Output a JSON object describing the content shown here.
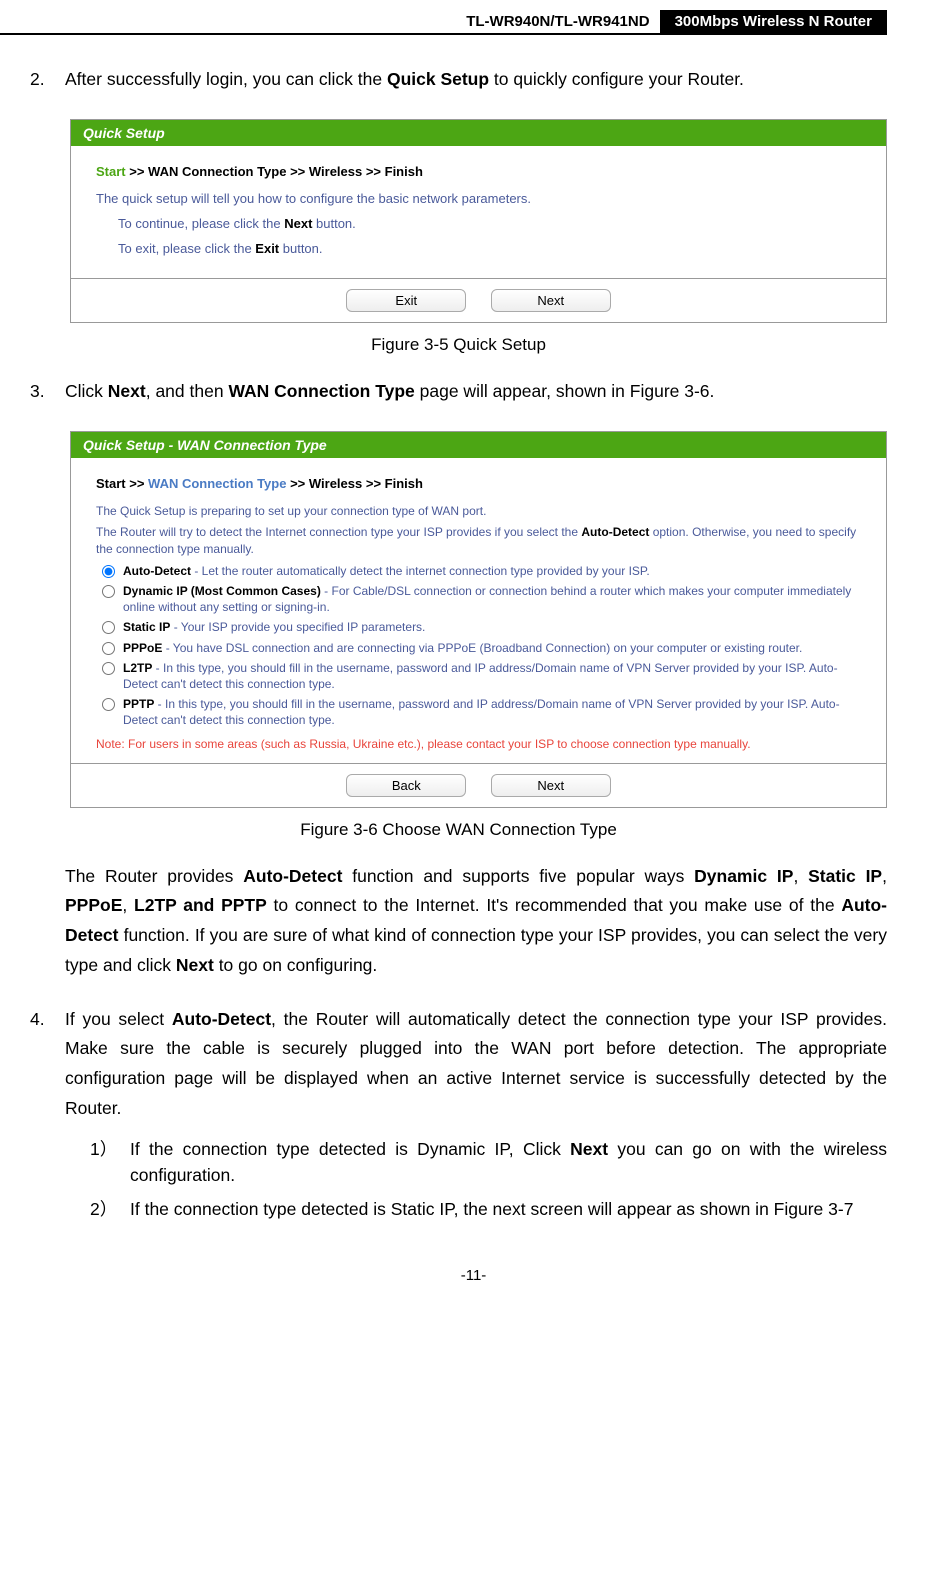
{
  "header": {
    "left": "TL-WR940N/TL-WR941ND",
    "right": "300Mbps Wireless N Router"
  },
  "step2": {
    "num": "2.",
    "text_before": "After successfully login, you can click the ",
    "bold": "Quick Setup",
    "text_after": " to quickly configure your Router."
  },
  "fig35": {
    "title": "Quick Setup",
    "bc_start": "Start",
    "bc_rest": " >> WAN Connection Type >> Wireless >> Finish",
    "line1": "The quick setup will tell you how to configure the basic network parameters.",
    "line2a": "To continue, please click the ",
    "line2b": "Next",
    "line2c": " button.",
    "line3a": "To exit, please click the ",
    "line3b": "Exit",
    "line3c": "  button.",
    "btn_exit": "Exit",
    "btn_next": "Next",
    "caption": "Figure 3-5    Quick Setup"
  },
  "step3": {
    "num": "3.",
    "text_a": "Click ",
    "bold1": "Next",
    "text_b": ", and then ",
    "bold2": "WAN Connection Type",
    "text_c": " page will appear, shown in Figure 3-6."
  },
  "fig36": {
    "title": "Quick Setup - WAN Connection Type",
    "bc_start": "Start >> ",
    "bc_current": "WAN Connection Type",
    "bc_rest": " >> Wireless >> Finish",
    "desc1": "The Quick Setup is preparing to set up your connection type of WAN port.",
    "desc2a": "The Router will try to detect the Internet connection type your ISP provides if you select the ",
    "desc2b": "Auto-Detect",
    "desc2c": " option. Otherwise, you need to specify the connection type manually.",
    "opt1b": "Auto-Detect",
    "opt1t": " - Let the router automatically detect the internet connection type provided by your ISP.",
    "opt2b": "Dynamic IP (Most Common Cases)",
    "opt2t": " - For Cable/DSL connection or connection behind a router which makes your computer immediately online without any setting or signing-in.",
    "opt3b": "Static IP",
    "opt3t": " - Your ISP provide you specified IP parameters.",
    "opt4b": "PPPoE",
    "opt4t": " - You have DSL connection and are connecting via PPPoE (Broadband Connection) on your computer or existing router.",
    "opt5b": "L2TP",
    "opt5t": " - In this type, you should fill in the username, password and IP address/Domain name of VPN Server provided by your ISP. Auto-Detect can't detect this connection type.",
    "opt6b": "PPTP",
    "opt6t": " - In this type, you should fill in the username, password and IP address/Domain name of VPN Server provided by your ISP. Auto-Detect can't detect this connection type.",
    "note": "Note: For users in some areas (such as Russia, Ukraine etc.), please contact your ISP to choose connection type manually.",
    "btn_back": "Back",
    "btn_next": "Next",
    "caption": "Figure 3-6    Choose WAN Connection Type"
  },
  "para": {
    "t1": "The Router provides ",
    "b1": "Auto-Detect",
    "t2": " function and supports five popular ways ",
    "b2": "Dynamic IP",
    "t3": ", ",
    "b3": "Static IP",
    "t4": ", ",
    "b4": "PPPoE",
    "t5": ", ",
    "b5": "L2TP and PPTP",
    "t6": " to connect to the Internet. It's recommended that you make use of the ",
    "b6": "Auto-Detect",
    "t7": " function. If you are sure of what kind of connection type your ISP provides, you can select the very type and click ",
    "b7": "Next",
    "t8": " to go on configuring."
  },
  "step4": {
    "num": "4.",
    "t1": "If you select ",
    "b1": "Auto-Detect",
    "t2": ", the Router will automatically detect the connection type your ISP provides. Make sure the cable is securely plugged into the WAN port before detection. The appropriate configuration page will be displayed when an active Internet service is successfully detected by the Router."
  },
  "sub1": {
    "num": "1）",
    "t1": "If the connection type detected is Dynamic IP, Click ",
    "b1": "Next",
    "t2": " you can go on with the wireless configuration."
  },
  "sub2": {
    "num": "2）",
    "t1": "If the connection type detected is Static IP, the next screen will appear as shown in Figure 3-7"
  },
  "pagenum": "-11-"
}
